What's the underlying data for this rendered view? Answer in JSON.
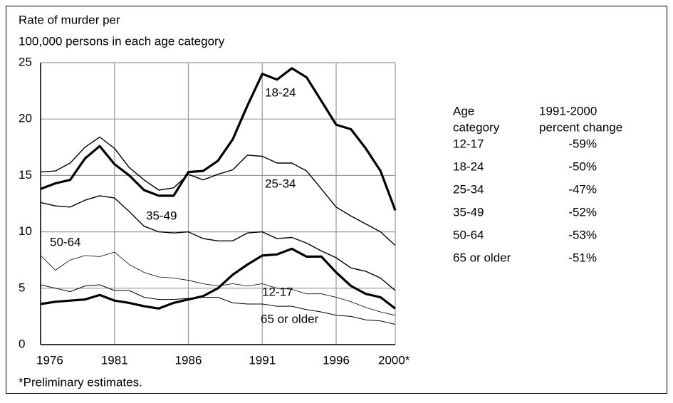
{
  "chart_data": {
    "type": "line",
    "y_label_lines": [
      "Rate of murder per",
      "100,000 persons in each age category"
    ],
    "footnote": "*Preliminary estimates.",
    "x": [
      1976,
      1977,
      1978,
      1979,
      1980,
      1981,
      1982,
      1983,
      1984,
      1985,
      1986,
      1987,
      1988,
      1989,
      1990,
      1991,
      1992,
      1993,
      1994,
      1995,
      1996,
      1997,
      1998,
      1999,
      2000
    ],
    "xlim": [
      1976,
      2000
    ],
    "xticks": [
      1976,
      1981,
      1986,
      1991,
      1996,
      {
        "value": 2000,
        "label": "2000*"
      }
    ],
    "ylim": [
      0,
      25
    ],
    "yticks": [
      0,
      5,
      10,
      15,
      20,
      25
    ],
    "grid": true,
    "series": [
      {
        "name": "18-24",
        "color": "#000000",
        "values": [
          13.8,
          14.3,
          14.6,
          16.5,
          17.6,
          16.0,
          15.0,
          13.7,
          13.2,
          13.2,
          15.3,
          15.4,
          16.3,
          18.2,
          21.2,
          24.0,
          23.5,
          24.5,
          23.7,
          21.6,
          19.5,
          19.1,
          17.4,
          15.4,
          11.9
        ]
      },
      {
        "name": "25-34",
        "color": "#000000",
        "values": [
          15.3,
          15.4,
          16.1,
          17.5,
          18.4,
          17.4,
          15.7,
          14.6,
          13.7,
          13.9,
          15.1,
          14.6,
          15.1,
          15.5,
          16.8,
          16.7,
          16.1,
          16.1,
          15.4,
          13.8,
          12.2,
          11.4,
          10.7,
          10.0,
          8.8
        ]
      },
      {
        "name": "35-49",
        "color": "#000000",
        "values": [
          12.6,
          12.3,
          12.2,
          12.8,
          13.2,
          13.0,
          11.8,
          10.5,
          10.0,
          9.9,
          10.0,
          9.4,
          9.2,
          9.2,
          9.9,
          10.0,
          9.4,
          9.5,
          9.0,
          8.3,
          7.7,
          6.8,
          6.5,
          5.9,
          4.8
        ]
      },
      {
        "name": "50-64",
        "color": "#000000",
        "values": [
          7.9,
          6.6,
          7.5,
          7.9,
          7.8,
          8.2,
          7.1,
          6.4,
          6.0,
          5.9,
          5.7,
          5.4,
          5.2,
          5.4,
          5.2,
          5.4,
          5.0,
          4.9,
          4.5,
          4.5,
          4.2,
          3.8,
          3.3,
          2.9,
          2.6
        ]
      },
      {
        "name": "12-17",
        "color": "#000000",
        "values": [
          3.6,
          3.8,
          3.9,
          4.0,
          4.4,
          3.9,
          3.7,
          3.4,
          3.2,
          3.7,
          4.0,
          4.3,
          5.0,
          6.2,
          7.1,
          7.9,
          8.0,
          8.5,
          7.8,
          7.8,
          6.4,
          5.2,
          4.5,
          4.2,
          3.2
        ]
      },
      {
        "name": "65 or older",
        "color": "#000000",
        "values": [
          5.3,
          5.0,
          4.7,
          5.2,
          5.3,
          4.8,
          4.8,
          4.2,
          4.0,
          4.0,
          4.1,
          4.2,
          4.2,
          3.7,
          3.6,
          3.6,
          3.4,
          3.4,
          3.1,
          2.9,
          2.6,
          2.5,
          2.2,
          2.1,
          1.8
        ]
      }
    ]
  },
  "table": {
    "headers": [
      [
        "Age",
        "category"
      ],
      [
        "1991-2000",
        "percent change"
      ]
    ],
    "rows": [
      [
        "12-17",
        "-59%"
      ],
      [
        "18-24",
        "-50%"
      ],
      [
        "25-34",
        "-47%"
      ],
      [
        "35-49",
        "-52%"
      ],
      [
        "50-64",
        "-53%"
      ],
      [
        "65 or older",
        "-51%"
      ]
    ]
  }
}
